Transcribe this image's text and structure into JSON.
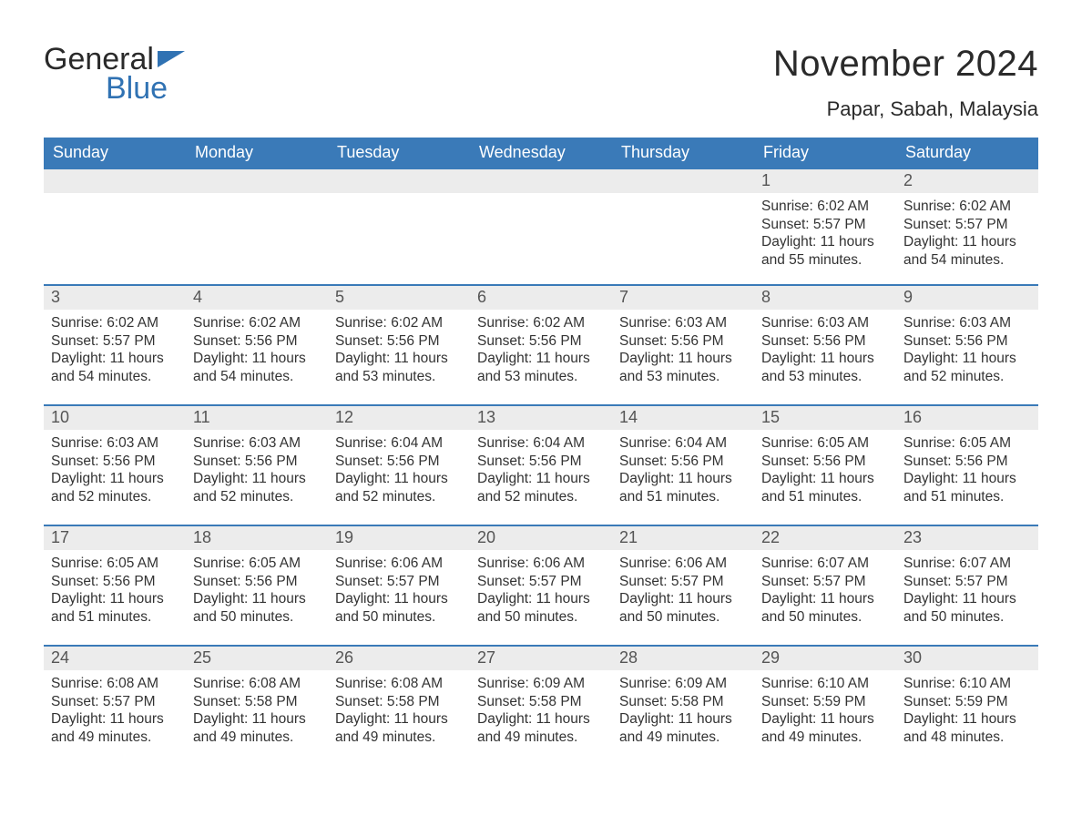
{
  "logo": {
    "word1": "General",
    "word2": "Blue"
  },
  "title": "November 2024",
  "location": "Papar, Sabah, Malaysia",
  "theme": {
    "header_bg": "#3a7ab8",
    "header_text": "#ffffff",
    "daynum_bg": "#ececec",
    "daynum_text": "#555555",
    "body_text": "#333333",
    "rule_color": "#3a7ab8",
    "page_bg": "#ffffff",
    "logo_accent": "#3072b3"
  },
  "weekdays": [
    "Sunday",
    "Monday",
    "Tuesday",
    "Wednesday",
    "Thursday",
    "Friday",
    "Saturday"
  ],
  "weeks": [
    [
      null,
      null,
      null,
      null,
      null,
      {
        "n": "1",
        "sunrise": "6:02 AM",
        "sunset": "5:57 PM",
        "daylight": "11 hours and 55 minutes."
      },
      {
        "n": "2",
        "sunrise": "6:02 AM",
        "sunset": "5:57 PM",
        "daylight": "11 hours and 54 minutes."
      }
    ],
    [
      {
        "n": "3",
        "sunrise": "6:02 AM",
        "sunset": "5:57 PM",
        "daylight": "11 hours and 54 minutes."
      },
      {
        "n": "4",
        "sunrise": "6:02 AM",
        "sunset": "5:56 PM",
        "daylight": "11 hours and 54 minutes."
      },
      {
        "n": "5",
        "sunrise": "6:02 AM",
        "sunset": "5:56 PM",
        "daylight": "11 hours and 53 minutes."
      },
      {
        "n": "6",
        "sunrise": "6:02 AM",
        "sunset": "5:56 PM",
        "daylight": "11 hours and 53 minutes."
      },
      {
        "n": "7",
        "sunrise": "6:03 AM",
        "sunset": "5:56 PM",
        "daylight": "11 hours and 53 minutes."
      },
      {
        "n": "8",
        "sunrise": "6:03 AM",
        "sunset": "5:56 PM",
        "daylight": "11 hours and 53 minutes."
      },
      {
        "n": "9",
        "sunrise": "6:03 AM",
        "sunset": "5:56 PM",
        "daylight": "11 hours and 52 minutes."
      }
    ],
    [
      {
        "n": "10",
        "sunrise": "6:03 AM",
        "sunset": "5:56 PM",
        "daylight": "11 hours and 52 minutes."
      },
      {
        "n": "11",
        "sunrise": "6:03 AM",
        "sunset": "5:56 PM",
        "daylight": "11 hours and 52 minutes."
      },
      {
        "n": "12",
        "sunrise": "6:04 AM",
        "sunset": "5:56 PM",
        "daylight": "11 hours and 52 minutes."
      },
      {
        "n": "13",
        "sunrise": "6:04 AM",
        "sunset": "5:56 PM",
        "daylight": "11 hours and 52 minutes."
      },
      {
        "n": "14",
        "sunrise": "6:04 AM",
        "sunset": "5:56 PM",
        "daylight": "11 hours and 51 minutes."
      },
      {
        "n": "15",
        "sunrise": "6:05 AM",
        "sunset": "5:56 PM",
        "daylight": "11 hours and 51 minutes."
      },
      {
        "n": "16",
        "sunrise": "6:05 AM",
        "sunset": "5:56 PM",
        "daylight": "11 hours and 51 minutes."
      }
    ],
    [
      {
        "n": "17",
        "sunrise": "6:05 AM",
        "sunset": "5:56 PM",
        "daylight": "11 hours and 51 minutes."
      },
      {
        "n": "18",
        "sunrise": "6:05 AM",
        "sunset": "5:56 PM",
        "daylight": "11 hours and 50 minutes."
      },
      {
        "n": "19",
        "sunrise": "6:06 AM",
        "sunset": "5:57 PM",
        "daylight": "11 hours and 50 minutes."
      },
      {
        "n": "20",
        "sunrise": "6:06 AM",
        "sunset": "5:57 PM",
        "daylight": "11 hours and 50 minutes."
      },
      {
        "n": "21",
        "sunrise": "6:06 AM",
        "sunset": "5:57 PM",
        "daylight": "11 hours and 50 minutes."
      },
      {
        "n": "22",
        "sunrise": "6:07 AM",
        "sunset": "5:57 PM",
        "daylight": "11 hours and 50 minutes."
      },
      {
        "n": "23",
        "sunrise": "6:07 AM",
        "sunset": "5:57 PM",
        "daylight": "11 hours and 50 minutes."
      }
    ],
    [
      {
        "n": "24",
        "sunrise": "6:08 AM",
        "sunset": "5:57 PM",
        "daylight": "11 hours and 49 minutes."
      },
      {
        "n": "25",
        "sunrise": "6:08 AM",
        "sunset": "5:58 PM",
        "daylight": "11 hours and 49 minutes."
      },
      {
        "n": "26",
        "sunrise": "6:08 AM",
        "sunset": "5:58 PM",
        "daylight": "11 hours and 49 minutes."
      },
      {
        "n": "27",
        "sunrise": "6:09 AM",
        "sunset": "5:58 PM",
        "daylight": "11 hours and 49 minutes."
      },
      {
        "n": "28",
        "sunrise": "6:09 AM",
        "sunset": "5:58 PM",
        "daylight": "11 hours and 49 minutes."
      },
      {
        "n": "29",
        "sunrise": "6:10 AM",
        "sunset": "5:59 PM",
        "daylight": "11 hours and 49 minutes."
      },
      {
        "n": "30",
        "sunrise": "6:10 AM",
        "sunset": "5:59 PM",
        "daylight": "11 hours and 48 minutes."
      }
    ]
  ],
  "labels": {
    "sunrise": "Sunrise:",
    "sunset": "Sunset:",
    "daylight": "Daylight:"
  }
}
